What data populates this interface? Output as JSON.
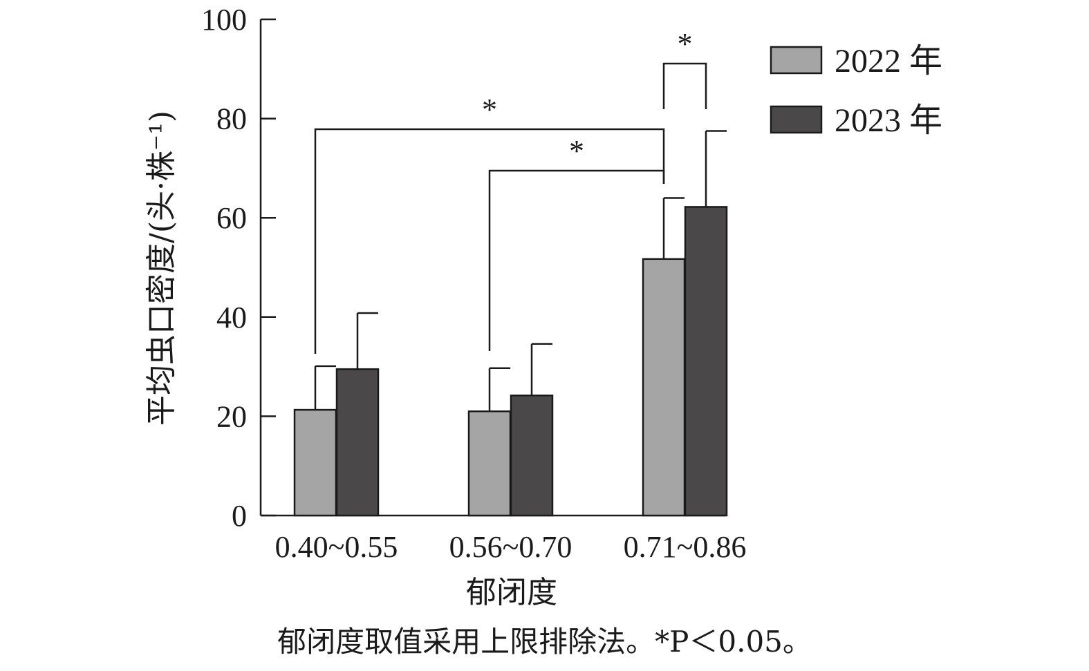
{
  "chart_data": {
    "type": "bar",
    "categories": [
      "0.40~0.55",
      "0.56~0.70",
      "0.71~0.86"
    ],
    "series": [
      {
        "name": "2022 年",
        "values": [
          21.3,
          21.0,
          51.7
        ],
        "errors": [
          8.8,
          8.7,
          12.3
        ],
        "color": "#a6a5a6"
      },
      {
        "name": "2023 年",
        "values": [
          29.5,
          24.2,
          62.2
        ],
        "errors": [
          11.3,
          10.4,
          15.3
        ],
        "color": "#4a4849"
      }
    ],
    "xlabel": "郁闭度",
    "ylabel": "平均虫口密度/(头·株⁻¹)",
    "ylim": [
      0,
      100
    ],
    "yticks": [
      0,
      20,
      40,
      60,
      80,
      100
    ],
    "significance": [
      {
        "from": [
          2,
          0
        ],
        "to": [
          2,
          1
        ],
        "label": "*"
      },
      {
        "from": [
          0,
          0
        ],
        "to": [
          2,
          0
        ],
        "label": "*"
      },
      {
        "from": [
          1,
          0
        ],
        "to": [
          2,
          0
        ],
        "label": "*"
      }
    ],
    "legend_position": "top-right",
    "note": "郁闭度取值采用上限排除法。*P＜0.05。"
  }
}
